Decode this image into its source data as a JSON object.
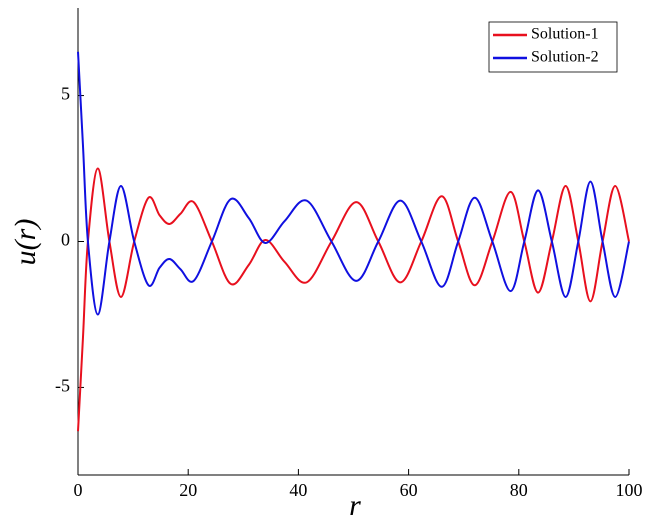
{
  "chart_data": {
    "type": "line",
    "xlabel": "r",
    "ylabel": "u(r)",
    "x": [
      0,
      0.9,
      1.8,
      3.6,
      5.7,
      7.8,
      10.2,
      12.8,
      14.8,
      16.6,
      18.6,
      21,
      24.3,
      27.7,
      31,
      34,
      37.5,
      41.5,
      46,
      50.5,
      54.5,
      58.5,
      62.3,
      66,
      69,
      72,
      75.2,
      78.5,
      81,
      83.5,
      86,
      88.5,
      90.8,
      93,
      95.2,
      97.5,
      100
    ],
    "series": [
      {
        "name": "Solution-1",
        "color": "#e8101e",
        "values": [
          -6.5,
          -3.3,
          0,
          2.5,
          0,
          -1.9,
          0,
          1.5,
          0.9,
          0.6,
          0.95,
          1.35,
          0,
          -1.45,
          -0.8,
          0.05,
          -0.7,
          -1.4,
          0,
          1.35,
          0,
          -1.4,
          0,
          1.55,
          0,
          -1.5,
          0,
          1.7,
          0,
          -1.75,
          0,
          1.9,
          0,
          -2.05,
          0,
          1.9,
          0
        ]
      },
      {
        "name": "Solution-2",
        "color": "#1010e0",
        "values": [
          6.5,
          3.3,
          0,
          -2.5,
          0,
          1.9,
          0,
          -1.5,
          -0.9,
          -0.6,
          -0.95,
          -1.35,
          0,
          1.45,
          0.8,
          -0.05,
          0.7,
          1.4,
          0,
          -1.35,
          0,
          1.4,
          0,
          -1.55,
          0,
          1.5,
          0,
          -1.7,
          0,
          1.75,
          0,
          -1.9,
          0,
          2.05,
          0,
          -1.9,
          0
        ]
      }
    ],
    "xlim": [
      0,
      100
    ],
    "xticks": [
      0,
      20,
      40,
      60,
      80,
      100
    ],
    "ylim": [
      -8,
      8
    ],
    "yticks": [
      -5,
      0,
      5
    ],
    "legend": "upper right"
  }
}
